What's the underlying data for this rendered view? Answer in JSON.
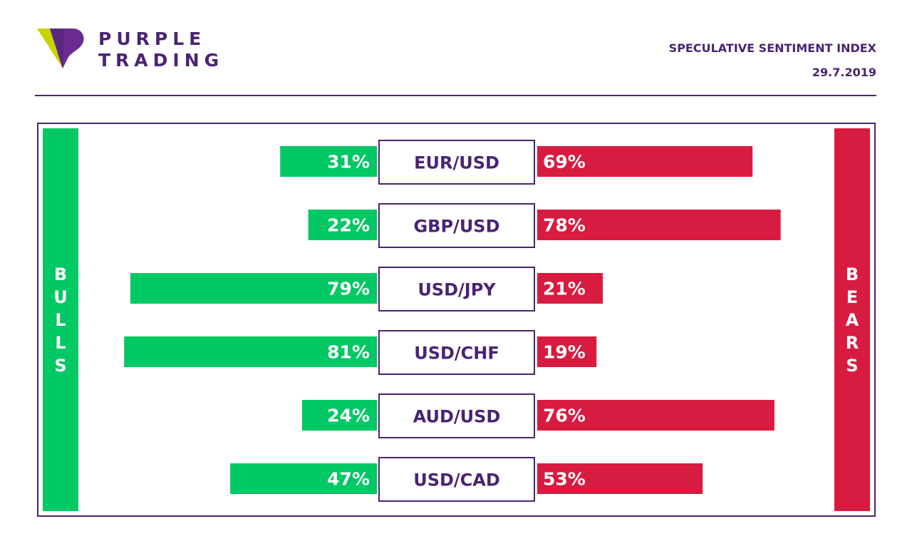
{
  "brand": {
    "name_line1": "PURPLE",
    "name_line2": "TRADING",
    "colors": {
      "purple": "#4a2472",
      "lime": "#c8d400"
    }
  },
  "header": {
    "title": "SPECULATIVE SENTIMENT INDEX",
    "date": "29.7.2019"
  },
  "sides": {
    "bulls_label": "BULLS",
    "bears_label": "BEARS",
    "bulls_color": "#00c864",
    "bears_color": "#d81b40"
  },
  "chart_data": {
    "type": "bar",
    "orientation": "diverging-horizontal",
    "categories": [
      "EUR/USD",
      "GBP/USD",
      "USD/JPY",
      "USD/CHF",
      "AUD/USD",
      "USD/CAD"
    ],
    "series": [
      {
        "name": "BULLS",
        "values": [
          31,
          22,
          79,
          81,
          24,
          47
        ],
        "labels": [
          "31%",
          "22%",
          "79%",
          "81%",
          "24%",
          "47%"
        ],
        "color": "#00c864"
      },
      {
        "name": "BEARS",
        "values": [
          69,
          78,
          21,
          19,
          76,
          53
        ],
        "labels": [
          "69%",
          "78%",
          "21%",
          "19%",
          "76%",
          "53%"
        ],
        "color": "#d81b40"
      }
    ],
    "unit": "%",
    "xlim": [
      0,
      100
    ],
    "grid": false,
    "legend": "side-bars"
  }
}
